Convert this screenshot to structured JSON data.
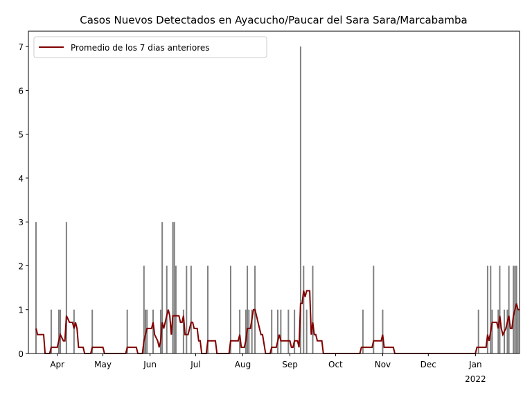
{
  "chart_data": {
    "type": "bar",
    "title": "Casos Nuevos Detectados en Ayacucho/Paucar del Sara Sara/Marcabamba",
    "xlim": [
      0,
      323
    ],
    "xticks": [
      {
        "value": 19,
        "label": "Apr"
      },
      {
        "value": 49,
        "label": "May"
      },
      {
        "value": 80,
        "label": "Jun"
      },
      {
        "value": 110,
        "label": "Jul"
      },
      {
        "value": 141,
        "label": "Aug"
      },
      {
        "value": 172,
        "label": "Sep"
      },
      {
        "value": 202,
        "label": "Oct"
      },
      {
        "value": 233,
        "label": "Nov"
      },
      {
        "value": 263,
        "label": "Dec"
      },
      {
        "value": 294,
        "label": "Jan"
      }
    ],
    "year_label": "2022",
    "ylim": [
      0,
      7.35
    ],
    "yticks": [
      0,
      1,
      2,
      3,
      4,
      5,
      6,
      7
    ],
    "grid": false,
    "legend": "upper left",
    "series": [
      {
        "type": "bar",
        "color": "#808080",
        "x": [
          5,
          15,
          20,
          21,
          25,
          30,
          42,
          65,
          76,
          77,
          78,
          82,
          87,
          88,
          91,
          95,
          96,
          97,
          102,
          104,
          107,
          118,
          133,
          139,
          143,
          144,
          145,
          147,
          149,
          160,
          164,
          166,
          171,
          175,
          179,
          181,
          183,
          187,
          220,
          227,
          233,
          296,
          302,
          304,
          305,
          309,
          310,
          313,
          315,
          316,
          319,
          320,
          321,
          322
        ],
        "values": [
          3,
          1,
          1,
          1,
          3,
          1,
          1,
          1,
          2,
          1,
          1,
          1,
          1,
          3,
          2,
          3,
          3,
          2,
          1,
          2,
          2,
          2,
          2,
          1,
          1,
          2,
          1,
          1,
          2,
          1,
          1,
          1,
          1,
          1,
          7,
          2,
          1,
          2,
          1,
          2,
          1,
          1,
          2,
          2,
          1,
          1,
          2,
          1,
          1,
          2,
          2,
          2,
          2,
          1
        ]
      },
      {
        "type": "line",
        "name": "Promedio de los 7 dias anteriores",
        "color": "#800000",
        "x": [
          5,
          6,
          10,
          11,
          14,
          15,
          19,
          20,
          21,
          23,
          24,
          25,
          27,
          29,
          30,
          31,
          32,
          33,
          36,
          37,
          41,
          42,
          49,
          50,
          64,
          65,
          71,
          72,
          75,
          76,
          77,
          78,
          81,
          82,
          83,
          85,
          86,
          87,
          88,
          89,
          91,
          92,
          93,
          94,
          95,
          99,
          100,
          101,
          102,
          103,
          105,
          107,
          108,
          109,
          111,
          112,
          113,
          114,
          117,
          118,
          123,
          124,
          132,
          133,
          138,
          139,
          140,
          142,
          143,
          144,
          146,
          148,
          149,
          150,
          152,
          153,
          154,
          156,
          159,
          160,
          163,
          165,
          166,
          172,
          173,
          174,
          175,
          177,
          178,
          179,
          180,
          181,
          182,
          183,
          185,
          186,
          187,
          188,
          189,
          190,
          193,
          194,
          218,
          219,
          226,
          227,
          232,
          233,
          234,
          240,
          241,
          294,
          295,
          301,
          302,
          303,
          305,
          308,
          309,
          310,
          311,
          312,
          314,
          316,
          317,
          318,
          319,
          321,
          322,
          323
        ],
        "values": [
          0.57,
          0.43,
          0.43,
          0,
          0,
          0.14,
          0.14,
          0.29,
          0.43,
          0.29,
          0.29,
          0.86,
          0.71,
          0.71,
          0.57,
          0.71,
          0.57,
          0.14,
          0.14,
          0,
          0,
          0.14,
          0.14,
          0,
          0,
          0.14,
          0.14,
          0,
          0,
          0.29,
          0.43,
          0.57,
          0.57,
          0.71,
          0.43,
          0.29,
          0.14,
          0.29,
          0.71,
          0.57,
          0.86,
          1.0,
          0.86,
          0.43,
          0.86,
          0.86,
          0.71,
          0.71,
          0.86,
          0.43,
          0.43,
          0.71,
          0.71,
          0.57,
          0.57,
          0.29,
          0.29,
          0,
          0,
          0.29,
          0.29,
          0,
          0,
          0.29,
          0.29,
          0.43,
          0.14,
          0.14,
          0.29,
          0.57,
          0.57,
          1.0,
          1.0,
          0.86,
          0.57,
          0.43,
          0.43,
          0,
          0,
          0.14,
          0.14,
          0.43,
          0.29,
          0.29,
          0.14,
          0.14,
          0.29,
          0.29,
          0.14,
          1.14,
          1.14,
          1.43,
          1.29,
          1.43,
          1.43,
          0.43,
          0.71,
          0.43,
          0.43,
          0.29,
          0.29,
          0,
          0,
          0.14,
          0.14,
          0.29,
          0.29,
          0.43,
          0.14,
          0.14,
          0,
          0,
          0.14,
          0.14,
          0.43,
          0.29,
          0.71,
          0.71,
          0.57,
          0.86,
          0.57,
          0.43,
          0.57,
          0.86,
          0.57,
          0.57,
          0.86,
          1.14,
          1.0,
          1.0
        ]
      }
    ]
  }
}
